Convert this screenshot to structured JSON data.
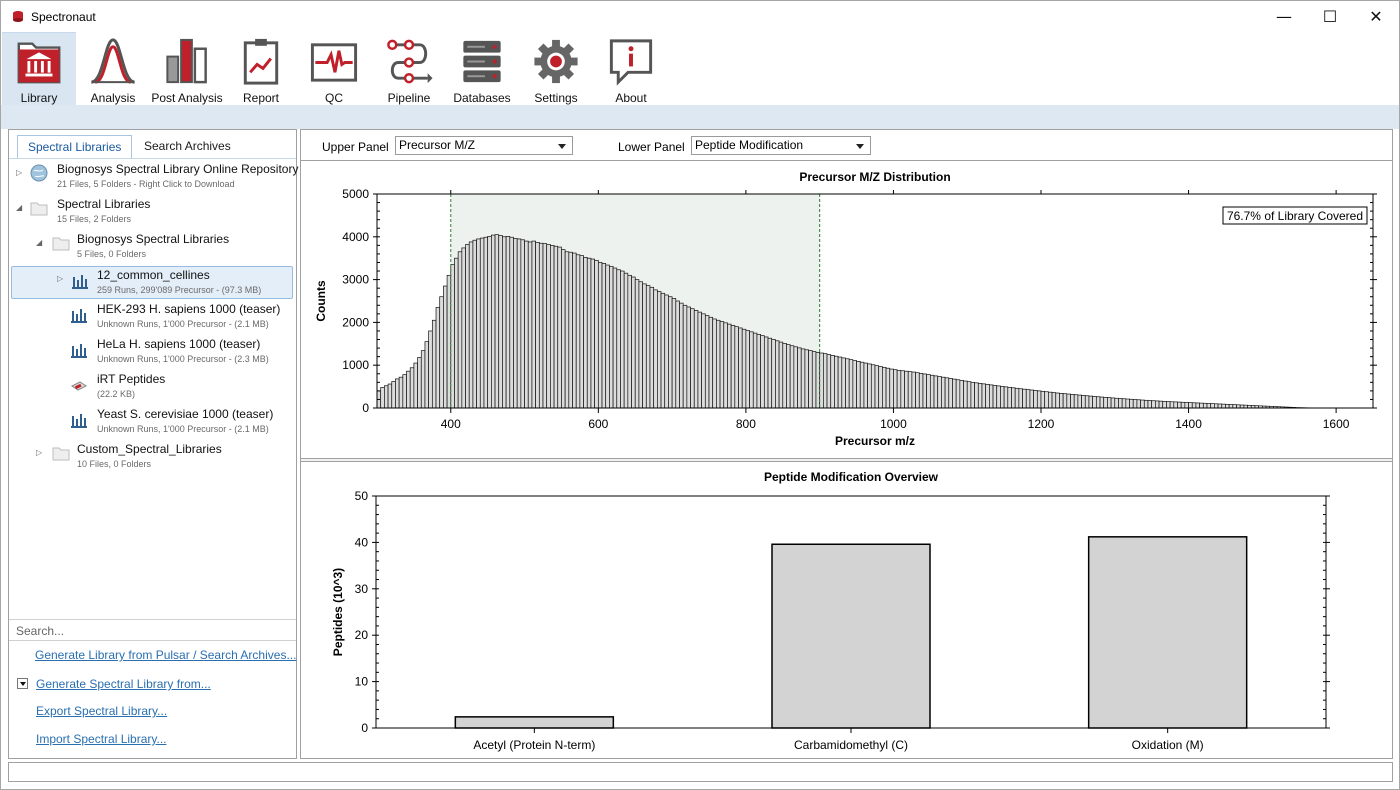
{
  "app": {
    "title": "Spectronaut"
  },
  "window_controls": {
    "minimize": "—",
    "maximize": "☐",
    "close": "✕"
  },
  "ribbon": [
    {
      "label": "Library",
      "icon": "library-icon"
    },
    {
      "label": "Analysis",
      "icon": "analysis-icon"
    },
    {
      "label": "Post Analysis",
      "icon": "post-analysis-icon"
    },
    {
      "label": "Report",
      "icon": "report-icon"
    },
    {
      "label": "QC",
      "icon": "qc-icon"
    },
    {
      "label": "Pipeline",
      "icon": "pipeline-icon"
    },
    {
      "label": "Databases",
      "icon": "databases-icon"
    },
    {
      "label": "Settings",
      "icon": "settings-icon"
    },
    {
      "label": "About",
      "icon": "about-icon"
    }
  ],
  "left": {
    "tabs": [
      "Spectral Libraries",
      "Search Archives"
    ],
    "tree": [
      {
        "name": "Biognosys Spectral Library Online Repository",
        "sub": "21 Files, 5 Folders - Right Click to Download",
        "icon": "globe-icon"
      },
      {
        "name": "Spectral Libraries",
        "sub": "15 Files, 2 Folders",
        "icon": "folder-icon"
      },
      {
        "name": "Biognosys Spectral Libraries",
        "sub": "5 Files, 0 Folders",
        "icon": "folder-icon"
      },
      {
        "name": "12_common_cellines",
        "sub": "259 Runs, 299'089 Precursor - (97.3 MB)",
        "icon": "library-file-icon"
      },
      {
        "name": "HEK-293 H. sapiens 1000 (teaser)",
        "sub": "Unknown Runs, 1'000 Precursor - (2.1 MB)",
        "icon": "library-file-icon"
      },
      {
        "name": "HeLa H. sapiens 1000 (teaser)",
        "sub": "Unknown Runs, 1'000 Precursor - (2.3 MB)",
        "icon": "library-file-icon"
      },
      {
        "name": "iRT Peptides",
        "sub": "(22.2 KB)",
        "icon": "irt-kit-icon"
      },
      {
        "name": "Yeast S. cerevisiae 1000 (teaser)",
        "sub": "Unknown Runs, 1'000 Precursor - (2.1 MB)",
        "icon": "library-file-icon"
      },
      {
        "name": "Custom_Spectral_Libraries",
        "sub": "10 Files, 0 Folders",
        "icon": "folder-icon"
      }
    ],
    "search_placeholder": "Search...",
    "actions": [
      "Generate Library from Pulsar / Search Archives...",
      "Generate Spectral Library from...",
      "Export Spectral Library...",
      "Import Spectral Library..."
    ]
  },
  "controls": {
    "upper_label": "Upper Panel",
    "upper_value": "Precursor M/Z",
    "lower_label": "Lower Panel",
    "lower_value": "Peptide Modification"
  },
  "chart_data": [
    {
      "type": "bar",
      "title": "Precursor M/Z Distribution",
      "xlabel": "Precursor m/z",
      "ylabel": "Counts",
      "xlim": [
        300,
        1650
      ],
      "ylim": [
        0,
        5000
      ],
      "xticks": [
        400,
        600,
        800,
        1000,
        1200,
        1400,
        1600
      ],
      "yticks": [
        0,
        1000,
        2000,
        3000,
        4000,
        5000
      ],
      "bin_width": 5,
      "bin_start": 300,
      "annotation": "76.7% of Library Covered",
      "highlight_range": [
        400,
        900
      ],
      "grid": false,
      "values": [
        400,
        480,
        520,
        560,
        620,
        680,
        720,
        780,
        860,
        940,
        1050,
        1180,
        1340,
        1550,
        1800,
        2050,
        2350,
        2600,
        2850,
        3100,
        3350,
        3500,
        3650,
        3740,
        3820,
        3880,
        3920,
        3950,
        3970,
        3990,
        4010,
        4040,
        4050,
        4030,
        4000,
        4010,
        3990,
        3960,
        3950,
        3930,
        3900,
        3880,
        3900,
        3870,
        3850,
        3840,
        3820,
        3800,
        3780,
        3760,
        3700,
        3650,
        3640,
        3620,
        3580,
        3560,
        3520,
        3500,
        3480,
        3450,
        3400,
        3380,
        3340,
        3310,
        3270,
        3230,
        3200,
        3150,
        3100,
        3060,
        3000,
        2950,
        2900,
        2860,
        2820,
        2760,
        2720,
        2680,
        2640,
        2600,
        2560,
        2500,
        2450,
        2400,
        2360,
        2320,
        2280,
        2240,
        2200,
        2160,
        2120,
        2080,
        2050,
        2020,
        1990,
        1960,
        1930,
        1900,
        1870,
        1840,
        1810,
        1780,
        1750,
        1720,
        1690,
        1660,
        1630,
        1600,
        1570,
        1540,
        1510,
        1480,
        1455,
        1430,
        1405,
        1380,
        1360,
        1340,
        1320,
        1300,
        1285,
        1270,
        1250,
        1230,
        1210,
        1190,
        1170,
        1150,
        1130,
        1110,
        1090,
        1070,
        1050,
        1030,
        1010,
        990,
        970,
        950,
        930,
        910,
        895,
        880,
        870,
        860,
        850,
        840,
        825,
        810,
        795,
        780,
        765,
        750,
        735,
        720,
        705,
        690,
        675,
        660,
        645,
        630,
        615,
        600,
        588,
        576,
        564,
        552,
        540,
        528,
        516,
        505,
        494,
        483,
        472,
        461,
        450,
        440,
        430,
        420,
        410,
        400,
        390,
        380,
        370,
        360,
        350,
        342,
        334,
        326,
        318,
        310,
        302,
        294,
        286,
        278,
        270,
        263,
        256,
        249,
        242,
        235,
        228,
        222,
        216,
        210,
        204,
        198,
        192,
        186,
        180,
        175,
        170,
        165,
        160,
        155,
        150,
        146,
        142,
        138,
        134,
        130,
        126,
        122,
        118,
        114,
        110,
        106,
        102,
        98,
        94,
        90,
        86,
        82,
        78,
        74,
        70,
        66,
        62,
        58,
        54,
        50,
        46,
        42,
        38,
        34,
        30,
        26,
        22,
        18,
        14,
        10,
        8,
        6,
        4,
        3,
        2
      ]
    },
    {
      "type": "bar",
      "title": "Peptide Modification Overview",
      "xlabel": "",
      "ylabel": "Peptides (10^3)",
      "ylim": [
        0,
        50
      ],
      "yticks": [
        0,
        10,
        20,
        30,
        40,
        50
      ],
      "categories": [
        "Acetyl (Protein N-term)",
        "Carbamidomethyl (C)",
        "Oxidation (M)"
      ],
      "values": [
        2.4,
        39.6,
        41.2
      ],
      "grid": false
    }
  ]
}
